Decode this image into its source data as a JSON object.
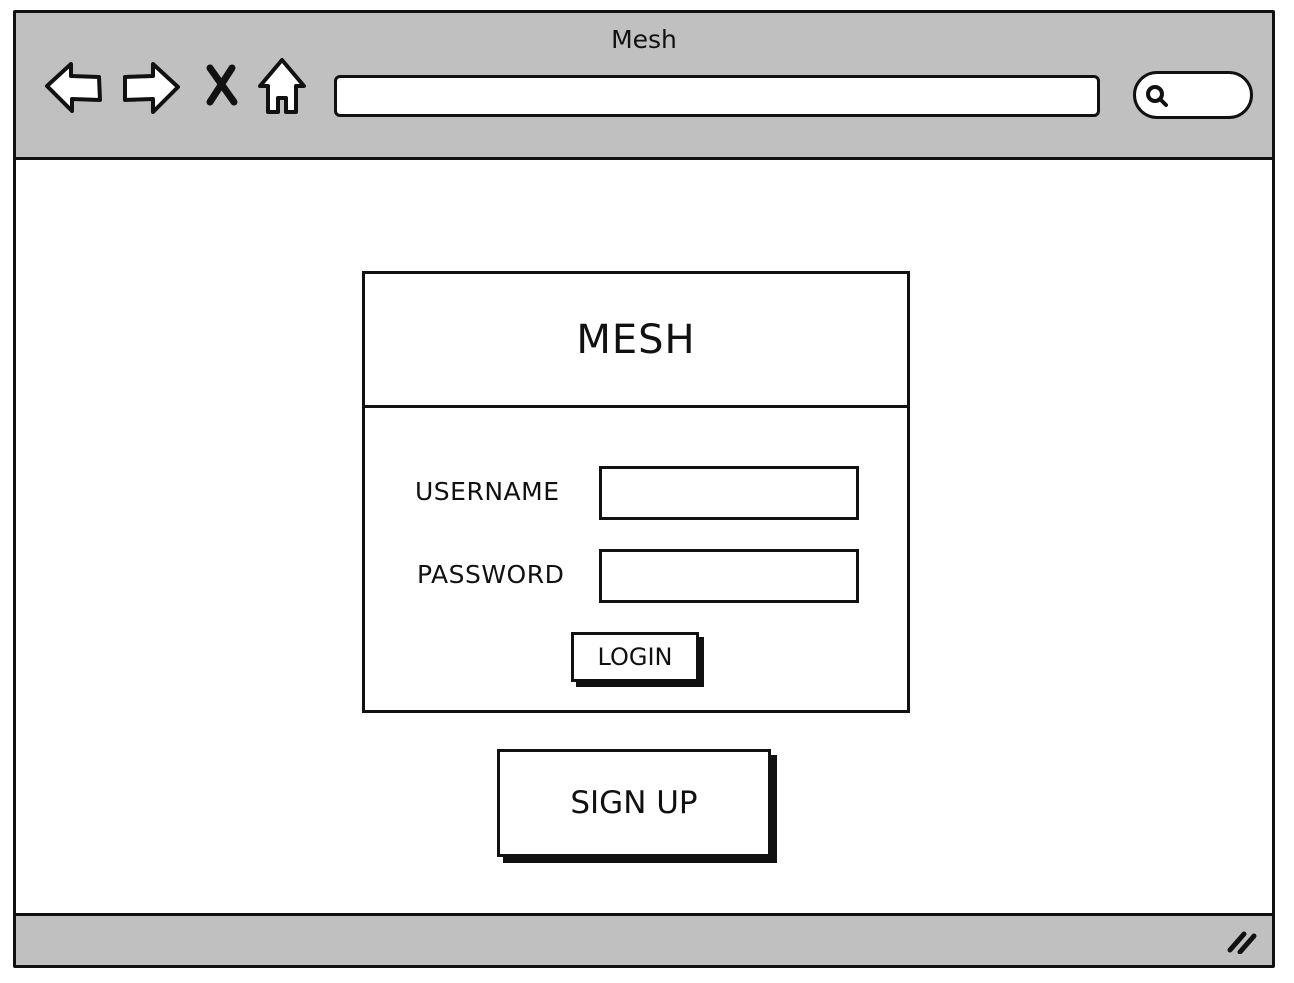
{
  "window": {
    "title": "Mesh"
  },
  "toolbar": {
    "back_icon": "back-arrow-icon",
    "forward_icon": "forward-arrow-icon",
    "stop_icon": "stop-x-icon",
    "home_icon": "home-icon",
    "url_value": "",
    "search_icon": "search-icon",
    "search_value": ""
  },
  "login": {
    "brand": "MESH",
    "username_label": "USERNAME",
    "username_value": "",
    "password_label": "PASSWORD",
    "password_value": "",
    "login_button": "LOGIN"
  },
  "signup": {
    "button_label": "SIGN UP"
  },
  "statusbar": {
    "resize_icon": "resize-grip-icon"
  },
  "colors": {
    "chrome": "#c0c0c0",
    "ink": "#111111",
    "background": "#ffffff"
  }
}
